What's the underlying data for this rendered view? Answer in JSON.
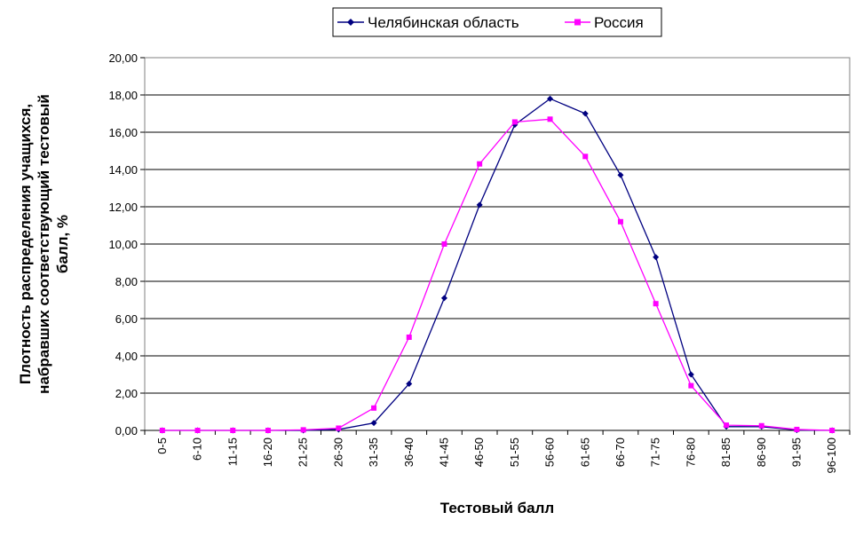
{
  "chart_data": {
    "type": "line",
    "xlabel": "Тестовый балл",
    "ylabel_lines": [
      "Плотность распределения учащихся,",
      "набравших соответствующий тестовый",
      "балл, %"
    ],
    "ylim": [
      0,
      20
    ],
    "yticks": [
      "0,00",
      "2,00",
      "4,00",
      "6,00",
      "8,00",
      "10,00",
      "12,00",
      "14,00",
      "16,00",
      "18,00",
      "20,00"
    ],
    "grid": true,
    "legend": "top",
    "categories": [
      "0-5",
      "6-10",
      "11-15",
      "16-20",
      "21-25",
      "26-30",
      "31-35",
      "36-40",
      "41-45",
      "46-50",
      "51-55",
      "56-60",
      "61-65",
      "66-70",
      "71-75",
      "76-80",
      "81-85",
      "86-90",
      "91-95",
      "96-100"
    ],
    "series": [
      {
        "name": "Челябинская область",
        "color": "#000080",
        "marker": "diamond",
        "values": [
          0,
          0,
          0,
          0,
          0,
          0.05,
          0.4,
          2.5,
          7.1,
          12.1,
          16.4,
          17.8,
          17.0,
          13.7,
          9.3,
          3.0,
          0.2,
          0.2,
          0.02,
          0
        ]
      },
      {
        "name": "Россия",
        "color": "#ff00ff",
        "marker": "square",
        "values": [
          0,
          0,
          0,
          0,
          0.03,
          0.12,
          1.2,
          5.0,
          10.0,
          14.3,
          16.55,
          16.7,
          14.7,
          11.2,
          6.8,
          2.4,
          0.28,
          0.25,
          0.05,
          0
        ]
      }
    ]
  }
}
